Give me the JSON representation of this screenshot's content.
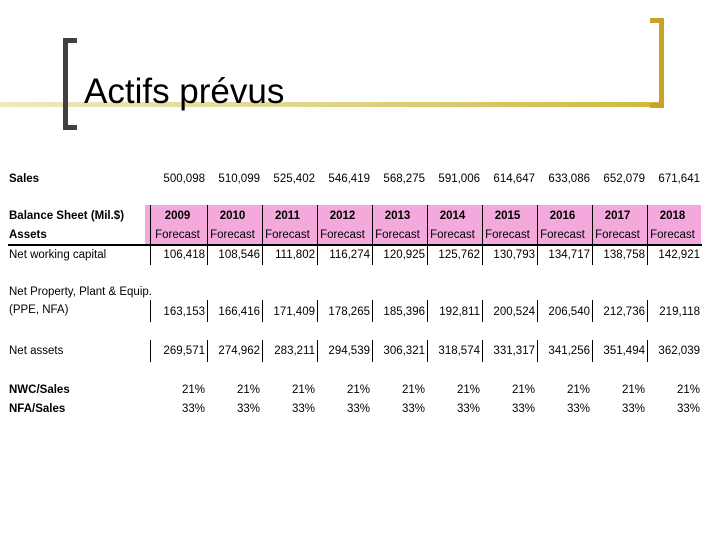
{
  "slide": {
    "title": "Actifs prévus"
  },
  "table": {
    "sales_label": "Sales",
    "sales": [
      "500,098",
      "510,099",
      "525,402",
      "546,419",
      "568,275",
      "591,006",
      "614,647",
      "633,086",
      "652,079",
      "671,641"
    ],
    "header_label_1": "Balance Sheet (Mil.$)",
    "header_label_2": "Assets",
    "years": [
      "2009",
      "2010",
      "2011",
      "2012",
      "2013",
      "2014",
      "2015",
      "2016",
      "2017",
      "2018"
    ],
    "forecast_label": "Forecast",
    "nwc_label": "Net working capital",
    "nwc": [
      "106,418",
      "108,546",
      "111,802",
      "116,274",
      "120,925",
      "125,762",
      "130,793",
      "134,717",
      "138,758",
      "142,921"
    ],
    "ppe_label_1": "Net Property, Plant & Equip.",
    "ppe_label_2": "(PPE, NFA)",
    "ppe": [
      "163,153",
      "166,416",
      "171,409",
      "178,265",
      "185,396",
      "192,811",
      "200,524",
      "206,540",
      "212,736",
      "219,118"
    ],
    "net_assets_label": "Net assets",
    "net_assets": [
      "269,571",
      "274,962",
      "283,211",
      "294,539",
      "306,321",
      "318,574",
      "331,317",
      "341,256",
      "351,494",
      "362,039"
    ],
    "nwc_sales_label": "NWC/Sales",
    "nwc_sales": [
      "21%",
      "21%",
      "21%",
      "21%",
      "21%",
      "21%",
      "21%",
      "21%",
      "21%",
      "21%"
    ],
    "nfa_sales_label": "NFA/Sales",
    "nfa_sales": [
      "33%",
      "33%",
      "33%",
      "33%",
      "33%",
      "33%",
      "33%",
      "33%",
      "33%",
      "33%"
    ]
  }
}
